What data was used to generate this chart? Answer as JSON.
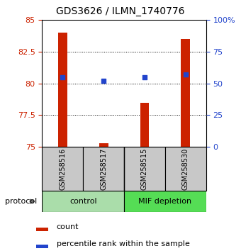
{
  "title": "GDS3626 / ILMN_1740776",
  "samples": [
    "GSM258516",
    "GSM258517",
    "GSM258515",
    "GSM258530"
  ],
  "red_values": [
    84.0,
    75.3,
    78.5,
    83.5
  ],
  "blue_values": [
    55,
    52,
    55,
    57
  ],
  "ylim_left": [
    75,
    85
  ],
  "ylim_right": [
    0,
    100
  ],
  "yticks_left": [
    75,
    77.5,
    80,
    82.5,
    85
  ],
  "yticks_right": [
    0,
    25,
    50,
    75,
    100
  ],
  "ytick_labels_right": [
    "0",
    "25",
    "50",
    "75",
    "100%"
  ],
  "red_color": "#cc2200",
  "blue_color": "#2244cc",
  "control_color": "#aaddaa",
  "mif_color": "#55dd55",
  "bar_bg_color": "#c8c8c8",
  "legend_red": "count",
  "legend_blue": "percentile rank within the sample",
  "protocol_label": "protocol",
  "group_labels": [
    "control",
    "MIF depletion"
  ]
}
